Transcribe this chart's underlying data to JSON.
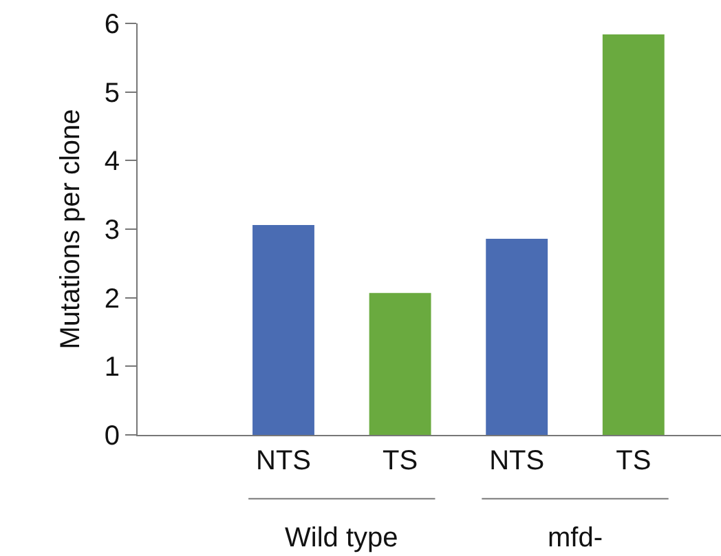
{
  "chart_data": {
    "type": "bar",
    "ylabel": "Mutations per clone",
    "categories": [
      "NTS",
      "TS",
      "NTS",
      "TS"
    ],
    "values": [
      3.06,
      2.07,
      2.86,
      5.84
    ],
    "colors": [
      "#4a6cb3",
      "#6aaa3f",
      "#4a6cb3",
      "#6aaa3f"
    ],
    "ylim": [
      0,
      6
    ],
    "yticks": [
      0,
      1,
      2,
      3,
      4,
      5,
      6
    ],
    "grid": false,
    "annotations": [
      "Wild type",
      "mfd-"
    ]
  }
}
